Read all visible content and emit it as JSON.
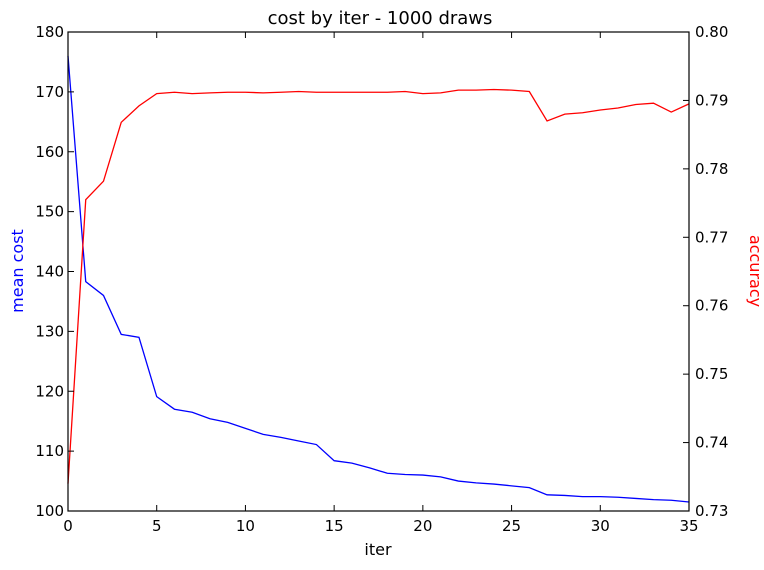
{
  "chart_data": {
    "type": "line",
    "title": "cost by iter - 1000 draws",
    "xlabel": "iter",
    "ylabel_left": "mean cost",
    "ylabel_right": "accuracy",
    "xlim": [
      0,
      35
    ],
    "ylim_left": [
      100,
      180
    ],
    "ylim_right": [
      0.73,
      0.8
    ],
    "x_ticks": [
      "0",
      "5",
      "10",
      "15",
      "20",
      "25",
      "30",
      "35"
    ],
    "y_left_ticks": [
      "100",
      "110",
      "120",
      "130",
      "140",
      "150",
      "160",
      "170",
      "180"
    ],
    "y_right_ticks": [
      "0.73",
      "0.74",
      "0.75",
      "0.76",
      "0.77",
      "0.78",
      "0.79",
      "0.80"
    ],
    "grid": false,
    "colors": {
      "cost": "#0000ff",
      "accuracy": "#ff0000",
      "left_label": "#0000ff",
      "right_label": "#ff0000"
    },
    "x": [
      0,
      1,
      2,
      3,
      4,
      5,
      6,
      7,
      8,
      9,
      10,
      11,
      12,
      13,
      14,
      15,
      16,
      17,
      18,
      19,
      20,
      21,
      22,
      23,
      24,
      25,
      26,
      27,
      28,
      29,
      30,
      31,
      32,
      33,
      34,
      35
    ],
    "series": [
      {
        "axis": "left",
        "values": [
          176,
          138.3,
          136,
          129.5,
          129,
          119.1,
          117,
          116.5,
          115.4,
          114.8,
          113.8,
          112.8,
          112.3,
          111.7,
          111.1,
          108.4,
          108,
          107.2,
          106.3,
          106.1,
          106,
          105.7,
          105,
          104.7,
          104.5,
          104.2,
          103.9,
          102.7,
          102.6,
          102.4,
          102.4,
          102.3,
          102.1,
          101.9,
          101.8,
          101.5
        ]
      },
      {
        "axis": "right",
        "values": [
          0.734,
          0.7755,
          0.7782,
          0.7868,
          0.7892,
          0.791,
          0.7912,
          0.791,
          0.7911,
          0.7912,
          0.7912,
          0.7911,
          0.7912,
          0.7913,
          0.7912,
          0.7912,
          0.7912,
          0.7912,
          0.7912,
          0.7913,
          0.791,
          0.7911,
          0.7915,
          0.7915,
          0.7916,
          0.7915,
          0.7913,
          0.787,
          0.788,
          0.7882,
          0.7886,
          0.7889,
          0.7894,
          0.7896,
          0.7883,
          0.7895
        ]
      }
    ]
  }
}
